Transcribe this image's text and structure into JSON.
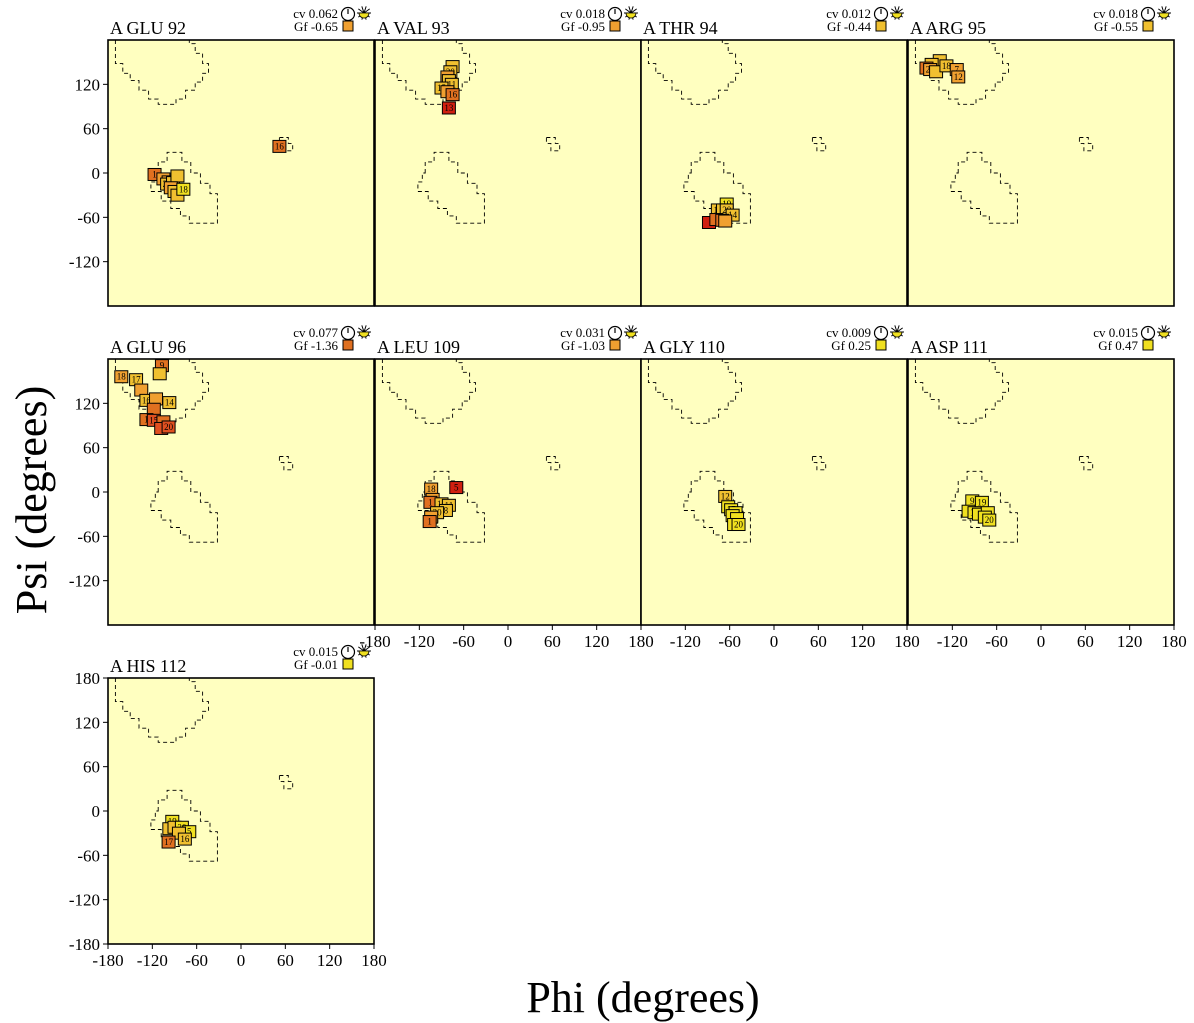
{
  "figure": {
    "xlabel": "Phi (degrees)",
    "ylabel": "Psi (degrees)",
    "cv_prefix": "cv",
    "gf_prefix": "Gf",
    "colors": {
      "background": "#ffffc0",
      "yellow": "#f0e020",
      "yellow_orange": "#f0c030",
      "orange": "#f0a030",
      "dark_orange": "#e07020",
      "red_orange": "#e05020",
      "red": "#d02010"
    }
  },
  "chart_data": {
    "type": "scatter",
    "x_ticks": [
      -180,
      -120,
      -60,
      0,
      60,
      120,
      180
    ],
    "y_ticks": [
      180,
      120,
      60,
      0,
      -60,
      -120,
      -180
    ],
    "xlim": [
      -180,
      180
    ],
    "ylim": [
      -180,
      180
    ],
    "panels": [
      {
        "title": "A GLU 92",
        "cv": "0.062",
        "gf": "-0.65",
        "gf_color": "#f0a030",
        "cv_icon": "clock-icon",
        "points": [
          {
            "phi": 52,
            "psi": 36,
            "label": "16",
            "color": "#e07020"
          },
          {
            "phi": -117,
            "psi": -2,
            "label": "1",
            "color": "#e07020"
          },
          {
            "phi": -105,
            "psi": -8,
            "label": "",
            "color": "#f0a030"
          },
          {
            "phi": -98,
            "psi": -12,
            "label": "",
            "color": "#f0a030"
          },
          {
            "phi": -100,
            "psi": -15,
            "label": "20",
            "color": "#f0c030"
          },
          {
            "phi": -92,
            "psi": -13,
            "label": "",
            "color": "#f0c030"
          },
          {
            "phi": -86,
            "psi": -4,
            "label": "",
            "color": "#f0c030"
          },
          {
            "phi": -95,
            "psi": -20,
            "label": "",
            "color": "#f0a030"
          },
          {
            "phi": -90,
            "psi": -25,
            "label": "",
            "color": "#f0c030"
          },
          {
            "phi": -86,
            "psi": -30,
            "label": "",
            "color": "#f0c030"
          },
          {
            "phi": -78,
            "psi": -22,
            "label": "18",
            "color": "#f0e020"
          }
        ]
      },
      {
        "title": "A VAL 93",
        "cv": "0.018",
        "gf": "-0.95",
        "gf_color": "#f0a030",
        "cv_icon": "clock-icon",
        "points": [
          {
            "phi": -75,
            "psi": 144,
            "label": "",
            "color": "#f0c030"
          },
          {
            "phi": -78,
            "psi": 137,
            "label": "20",
            "color": "#f0c030"
          },
          {
            "phi": -82,
            "psi": 130,
            "label": "",
            "color": "#f0a030"
          },
          {
            "phi": -80,
            "psi": 125,
            "label": "",
            "color": "#f0c030"
          },
          {
            "phi": -76,
            "psi": 120,
            "label": "11",
            "color": "#f0c030"
          },
          {
            "phi": -90,
            "psi": 115,
            "label": "15",
            "color": "#f0c030"
          },
          {
            "phi": -82,
            "psi": 110,
            "label": "",
            "color": "#f0a030"
          },
          {
            "phi": -75,
            "psi": 106,
            "label": "16",
            "color": "#e07020"
          },
          {
            "phi": -80,
            "psi": 88,
            "label": "13",
            "color": "#d02010"
          }
        ]
      },
      {
        "title": "A THR 94",
        "cv": "0.012",
        "gf": "-0.44",
        "gf_color": "#f0c030",
        "cv_icon": "clock-icon",
        "points": [
          {
            "phi": -64,
            "psi": -42,
            "label": "19",
            "color": "#f0e020"
          },
          {
            "phi": -76,
            "psi": -50,
            "label": "11",
            "color": "#f0c030"
          },
          {
            "phi": -69,
            "psi": -50,
            "label": "",
            "color": "#f0c030"
          },
          {
            "phi": -64,
            "psi": -50,
            "label": "20",
            "color": "#f0c030"
          },
          {
            "phi": -56,
            "psi": -57,
            "label": "14",
            "color": "#f0c030"
          },
          {
            "phi": -88,
            "psi": -67,
            "label": "",
            "color": "#d02010"
          },
          {
            "phi": -78,
            "psi": -63,
            "label": "",
            "color": "#e07020"
          },
          {
            "phi": -70,
            "psi": -64,
            "label": "17",
            "color": "#e07020"
          },
          {
            "phi": -66,
            "psi": -65,
            "label": "",
            "color": "#f0a030"
          }
        ]
      },
      {
        "title": "A ARG 95",
        "cv": "0.018",
        "gf": "-0.55",
        "gf_color": "#f0c030",
        "cv_icon": "clock-icon",
        "points": [
          {
            "phi": -137,
            "psi": 152,
            "label": "",
            "color": "#f0c030"
          },
          {
            "phi": -148,
            "psi": 147,
            "label": "",
            "color": "#f0c030"
          },
          {
            "phi": -155,
            "psi": 142,
            "label": "",
            "color": "#e07020"
          },
          {
            "phi": -150,
            "psi": 140,
            "label": "20",
            "color": "#f0a030"
          },
          {
            "phi": -142,
            "psi": 137,
            "label": "",
            "color": "#f0c030"
          },
          {
            "phi": -128,
            "psi": 145,
            "label": "18",
            "color": "#f0c030"
          },
          {
            "phi": -114,
            "psi": 140,
            "label": "7",
            "color": "#f0a030"
          },
          {
            "phi": -112,
            "psi": 130,
            "label": "12",
            "color": "#f0a030"
          }
        ]
      },
      {
        "title": "A GLU 96",
        "cv": "0.077",
        "gf": "-1.36",
        "gf_color": "#e07020",
        "cv_icon": "clock-icon",
        "points": [
          {
            "phi": -107,
            "psi": 171,
            "label": "9",
            "color": "#e07020"
          },
          {
            "phi": -110,
            "psi": 160,
            "label": "",
            "color": "#f0c030"
          },
          {
            "phi": -162,
            "psi": 156,
            "label": "18",
            "color": "#f0a030"
          },
          {
            "phi": -142,
            "psi": 152,
            "label": "17",
            "color": "#f0c030"
          },
          {
            "phi": -135,
            "psi": 138,
            "label": "",
            "color": "#f0a030"
          },
          {
            "phi": -128,
            "psi": 124,
            "label": "16",
            "color": "#f0c030"
          },
          {
            "phi": -115,
            "psi": 126,
            "label": "",
            "color": "#f0a030"
          },
          {
            "phi": -97,
            "psi": 121,
            "label": "14",
            "color": "#f0c030"
          },
          {
            "phi": -118,
            "psi": 112,
            "label": "",
            "color": "#e07020"
          },
          {
            "phi": -128,
            "psi": 98,
            "label": "1",
            "color": "#e07020"
          },
          {
            "phi": -118,
            "psi": 97,
            "label": "15",
            "color": "#e05020"
          },
          {
            "phi": -105,
            "psi": 95,
            "label": "",
            "color": "#e07020"
          },
          {
            "phi": -108,
            "psi": 86,
            "label": "",
            "color": "#e05020"
          },
          {
            "phi": -98,
            "psi": 88,
            "label": "20",
            "color": "#e05020"
          }
        ]
      },
      {
        "title": "A LEU 109",
        "cv": "0.031",
        "gf": "-1.03",
        "gf_color": "#f0a030",
        "cv_icon": "clock-icon",
        "points": [
          {
            "phi": -70,
            "psi": 6,
            "label": "5",
            "color": "#d02010"
          },
          {
            "phi": -104,
            "psi": 4,
            "label": "18",
            "color": "#f0a030"
          },
          {
            "phi": -102,
            "psi": -10,
            "label": "",
            "color": "#f0a030"
          },
          {
            "phi": -105,
            "psi": -14,
            "label": "1",
            "color": "#e07020"
          },
          {
            "phi": -90,
            "psi": -16,
            "label": "16",
            "color": "#f0c030"
          },
          {
            "phi": -80,
            "psi": -18,
            "label": "11",
            "color": "#f0c030"
          },
          {
            "phi": -84,
            "psi": -25,
            "label": "8",
            "color": "#f0c030"
          },
          {
            "phi": -96,
            "psi": -28,
            "label": "20",
            "color": "#f0c030"
          },
          {
            "phi": -104,
            "psi": -34,
            "label": "",
            "color": "#f0a030"
          },
          {
            "phi": -106,
            "psi": -40,
            "label": "1",
            "color": "#e07020"
          }
        ]
      },
      {
        "title": "A GLY 110",
        "cv": "0.009",
        "gf": "0.25",
        "gf_color": "#f0e020",
        "cv_icon": "clock-icon",
        "points": [
          {
            "phi": -66,
            "psi": -6,
            "label": "12",
            "color": "#f0c030"
          },
          {
            "phi": -62,
            "psi": -20,
            "label": "",
            "color": "#f0e020"
          },
          {
            "phi": -58,
            "psi": -24,
            "label": "17",
            "color": "#f0e020"
          },
          {
            "phi": -52,
            "psi": -28,
            "label": "",
            "color": "#f0e020"
          },
          {
            "phi": -56,
            "psi": -32,
            "label": "",
            "color": "#f0e020"
          },
          {
            "phi": -50,
            "psi": -36,
            "label": "",
            "color": "#f0e020"
          },
          {
            "phi": -54,
            "psi": -44,
            "label": "1",
            "color": "#f0e020"
          },
          {
            "phi": -48,
            "psi": -44,
            "label": "20",
            "color": "#f0e020"
          }
        ]
      },
      {
        "title": "A ASP 111",
        "cv": "0.015",
        "gf": "0.47",
        "gf_color": "#f0e020",
        "cv_icon": "clock-icon",
        "points": [
          {
            "phi": -93,
            "psi": -12,
            "label": "9",
            "color": "#f0e020"
          },
          {
            "phi": -80,
            "psi": -14,
            "label": "19",
            "color": "#f0e020"
          },
          {
            "phi": -98,
            "psi": -26,
            "label": "",
            "color": "#f0e020"
          },
          {
            "phi": -90,
            "psi": -28,
            "label": "13",
            "color": "#f0e020"
          },
          {
            "phi": -84,
            "psi": -30,
            "label": "",
            "color": "#f0e020"
          },
          {
            "phi": -72,
            "psi": -28,
            "label": "",
            "color": "#f0e020"
          },
          {
            "phi": -76,
            "psi": -34,
            "label": "",
            "color": "#f0e020"
          },
          {
            "phi": -70,
            "psi": -38,
            "label": "20",
            "color": "#f0e020"
          }
        ]
      },
      {
        "title": "A HIS 112",
        "cv": "0.015",
        "gf": "-0.01",
        "gf_color": "#f0e020",
        "cv_icon": "clock-icon",
        "points": [
          {
            "phi": -93,
            "psi": -14,
            "label": "19",
            "color": "#f0e020"
          },
          {
            "phi": -97,
            "psi": -24,
            "label": "",
            "color": "#f0c030"
          },
          {
            "phi": -90,
            "psi": -22,
            "label": "",
            "color": "#f0c030"
          },
          {
            "phi": -80,
            "psi": -22,
            "label": "20",
            "color": "#f0e020"
          },
          {
            "phi": -70,
            "psi": -28,
            "label": "5",
            "color": "#f0e020"
          },
          {
            "phi": -84,
            "psi": -30,
            "label": "",
            "color": "#f0c030"
          },
          {
            "phi": -76,
            "psi": -38,
            "label": "16",
            "color": "#f0c030"
          },
          {
            "phi": -98,
            "psi": -42,
            "label": "17",
            "color": "#e07020"
          }
        ]
      }
    ]
  }
}
